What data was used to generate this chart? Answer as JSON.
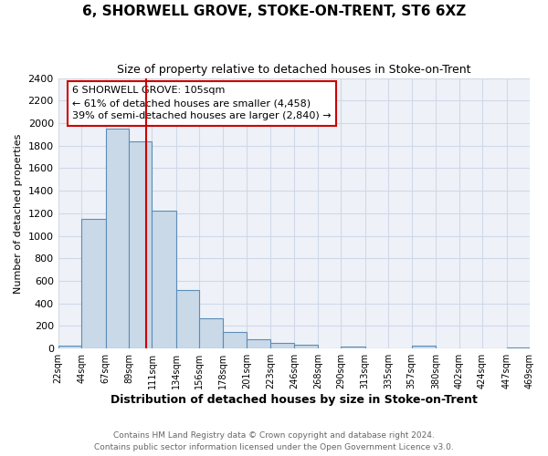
{
  "title": "6, SHORWELL GROVE, STOKE-ON-TRENT, ST6 6XZ",
  "subtitle": "Size of property relative to detached houses in Stoke-on-Trent",
  "xlabel": "Distribution of detached houses by size in Stoke-on-Trent",
  "ylabel": "Number of detached properties",
  "bin_edges": [
    22,
    44,
    67,
    89,
    111,
    134,
    156,
    178,
    201,
    223,
    246,
    268,
    290,
    313,
    335,
    357,
    380,
    402,
    424,
    447,
    469
  ],
  "counts": [
    30,
    1150,
    1950,
    1840,
    1220,
    520,
    265,
    150,
    80,
    50,
    35,
    5,
    15,
    5,
    5,
    30,
    5,
    5,
    5,
    10
  ],
  "bar_color": "#c9d9e8",
  "bar_edge_color": "#5b8db8",
  "property_size": 105,
  "vline_color": "#cc0000",
  "annotation_line1": "6 SHORWELL GROVE: 105sqm",
  "annotation_line2": "← 61% of detached houses are smaller (4,458)",
  "annotation_line3": "39% of semi-detached houses are larger (2,840) →",
  "annotation_box_color": "#ffffff",
  "annotation_box_edge": "#cc0000",
  "ylim": [
    0,
    2400
  ],
  "yticks": [
    0,
    200,
    400,
    600,
    800,
    1000,
    1200,
    1400,
    1600,
    1800,
    2000,
    2200,
    2400
  ],
  "tick_labels": [
    "22sqm",
    "44sqm",
    "67sqm",
    "89sqm",
    "111sqm",
    "134sqm",
    "156sqm",
    "178sqm",
    "201sqm",
    "223sqm",
    "246sqm",
    "268sqm",
    "290sqm",
    "313sqm",
    "335sqm",
    "357sqm",
    "380sqm",
    "402sqm",
    "424sqm",
    "447sqm",
    "469sqm"
  ],
  "footer_line1": "Contains HM Land Registry data © Crown copyright and database right 2024.",
  "footer_line2": "Contains public sector information licensed under the Open Government Licence v3.0.",
  "grid_color": "#d0d8e8",
  "bg_color": "#eef2f8",
  "title_fontsize": 11,
  "subtitle_fontsize": 9,
  "xlabel_fontsize": 9,
  "ylabel_fontsize": 8
}
